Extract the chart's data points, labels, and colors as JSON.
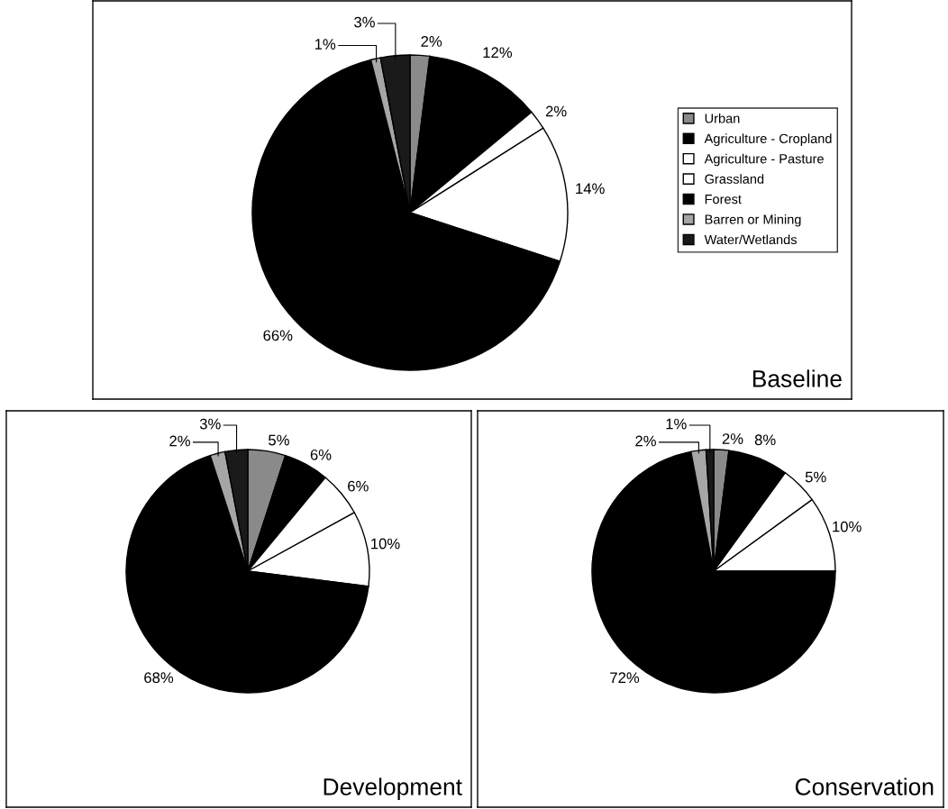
{
  "chart_data": [
    {
      "type": "pie",
      "title": "Baseline",
      "legend": "right",
      "categories": [
        "Urban",
        "Agriculture - Cropland",
        "Agriculture - Pasture",
        "Grassland",
        "Forest",
        "Barren or Mining",
        "Water/Wetlands"
      ],
      "values": [
        2,
        12,
        2,
        14,
        66,
        1,
        3
      ],
      "colors": [
        "#8a8a8a",
        "#000000",
        "#ffffff",
        "#ffffff",
        "#000000",
        "#a6a6a6",
        "#1a1a1a"
      ],
      "value_labels": [
        "2%",
        "12%",
        "2%",
        "14%",
        "66%",
        "1%",
        "3%"
      ]
    },
    {
      "type": "pie",
      "title": "Development",
      "categories": [
        null,
        null,
        null,
        null,
        null,
        null,
        null
      ],
      "values": [
        5,
        6,
        6,
        10,
        68,
        2,
        3
      ],
      "colors": [
        "#8a8a8a",
        "#000000",
        "#ffffff",
        "#ffffff",
        "#000000",
        "#a6a6a6",
        "#1a1a1a"
      ],
      "value_labels": [
        "5%",
        "6%",
        "6%",
        "10%",
        "68%",
        "2%",
        "3%"
      ]
    },
    {
      "type": "pie",
      "title": "Conservation",
      "categories": [
        null,
        null,
        null,
        null,
        null,
        null,
        null
      ],
      "values": [
        2,
        8,
        5,
        10,
        72,
        2,
        1
      ],
      "colors": [
        "#8a8a8a",
        "#000000",
        "#ffffff",
        "#ffffff",
        "#000000",
        "#a6a6a6",
        "#1a1a1a"
      ],
      "value_labels": [
        "2%",
        "8%",
        "5%",
        "10%",
        "72%",
        "2%",
        "1%"
      ]
    }
  ]
}
